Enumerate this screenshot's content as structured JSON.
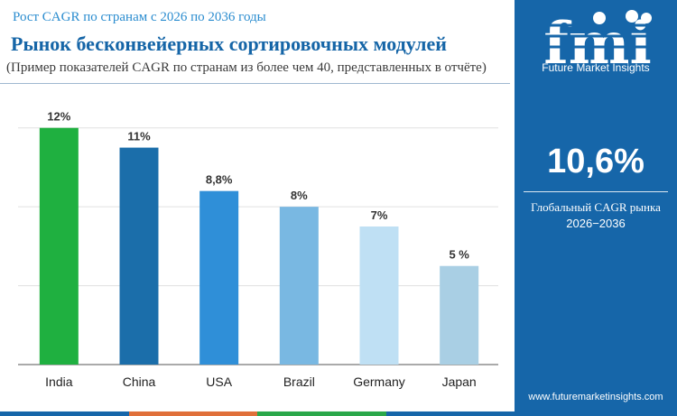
{
  "header": {
    "subtitle": "Рост CAGR по странам с 2026 по 2036 годы",
    "title": "Рынок бесконвейерных сортировочных модулей",
    "note": "(Пример показателей CAGR по странам из более чем 40, представленных в отчёте)"
  },
  "sidebar": {
    "logo_text": "fmi",
    "brand_name": "Future Market Insights",
    "kpi_value": "10,6%",
    "kpi_label_line1": "Глобальный CAGR рынка",
    "kpi_label_line2": "2026−2036",
    "website": "www.futuremarketinsights.com"
  },
  "colors": {
    "sidebar_bg": "#1666a9",
    "title": "#1565a7",
    "subtitle": "#2a8ccf",
    "gridline": "#e0e0e0",
    "bottom_bar": [
      "#1666a9",
      "#e0703a",
      "#2aa84a",
      "#1666a9"
    ]
  },
  "chart_data": {
    "type": "bar",
    "categories": [
      "India",
      "China",
      "USA",
      "Brazil",
      "Germany",
      "Japan"
    ],
    "values": [
      12,
      11,
      8.8,
      8,
      7,
      5
    ],
    "data_labels": [
      "12%",
      "11%",
      "8,8%",
      "8%",
      "7%",
      "5 %"
    ],
    "bar_colors": [
      "#1fb040",
      "#1b6eaa",
      "#2f8fd8",
      "#79b8e2",
      "#bfe0f4",
      "#a9cfe4"
    ],
    "ylim": [
      0,
      12.5
    ],
    "gridlines": [
      4,
      8,
      12
    ],
    "grid": true,
    "legend": "none"
  }
}
